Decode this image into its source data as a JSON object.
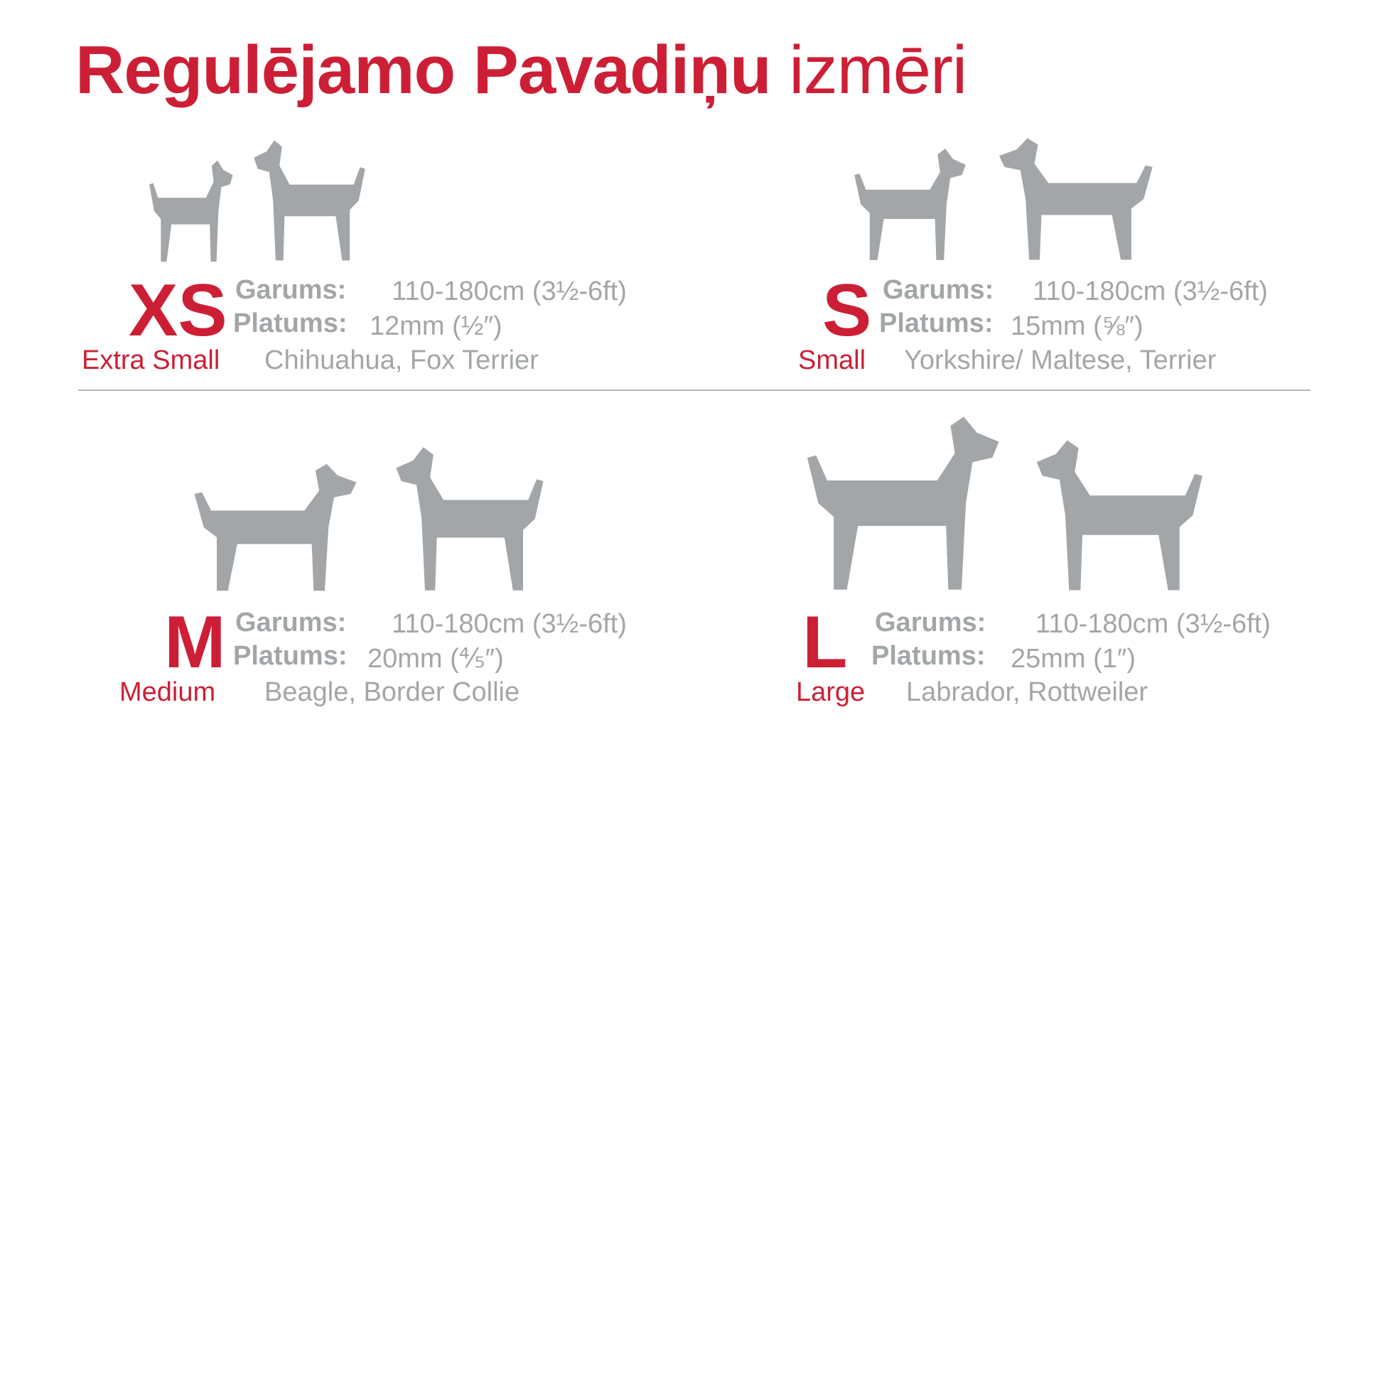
{
  "title": {
    "bold": "Regulējamo Pavadiņu",
    "light": "izmēri"
  },
  "colors": {
    "accent": "#cc1f36",
    "gray": "#a3a6a8"
  },
  "labels": {
    "length": "Garums:",
    "width": "Platums:"
  },
  "sizes": [
    {
      "code": "XS",
      "name": "Extra Small",
      "length": "110-180cm (3½-6ft)",
      "width": "12mm (½″)",
      "breeds": "Chihuahua, Fox Terrier",
      "icons": [
        "chihuahua-silhouette-icon",
        "fox-terrier-silhouette-icon"
      ]
    },
    {
      "code": "S",
      "name": "Small",
      "length": "110-180cm (3½-6ft)",
      "width": "15mm (⅝″)",
      "breeds": "Yorkshire/ Maltese, Terrier",
      "icons": [
        "yorkshire-silhouette-icon",
        "scottish-terrier-silhouette-icon"
      ]
    },
    {
      "code": "M",
      "name": "Medium",
      "length": "110-180cm (3½-6ft)",
      "width": "20mm (⅘″)",
      "breeds": "Beagle, Border Collie",
      "icons": [
        "beagle-silhouette-icon",
        "border-collie-silhouette-icon"
      ]
    },
    {
      "code": "L",
      "name": "Large",
      "length": "110-180cm (3½-6ft)",
      "width": "25mm (1″)",
      "breeds": "Labrador, Rottweiler",
      "icons": [
        "labrador-silhouette-icon",
        "rottweiler-silhouette-icon"
      ]
    }
  ]
}
